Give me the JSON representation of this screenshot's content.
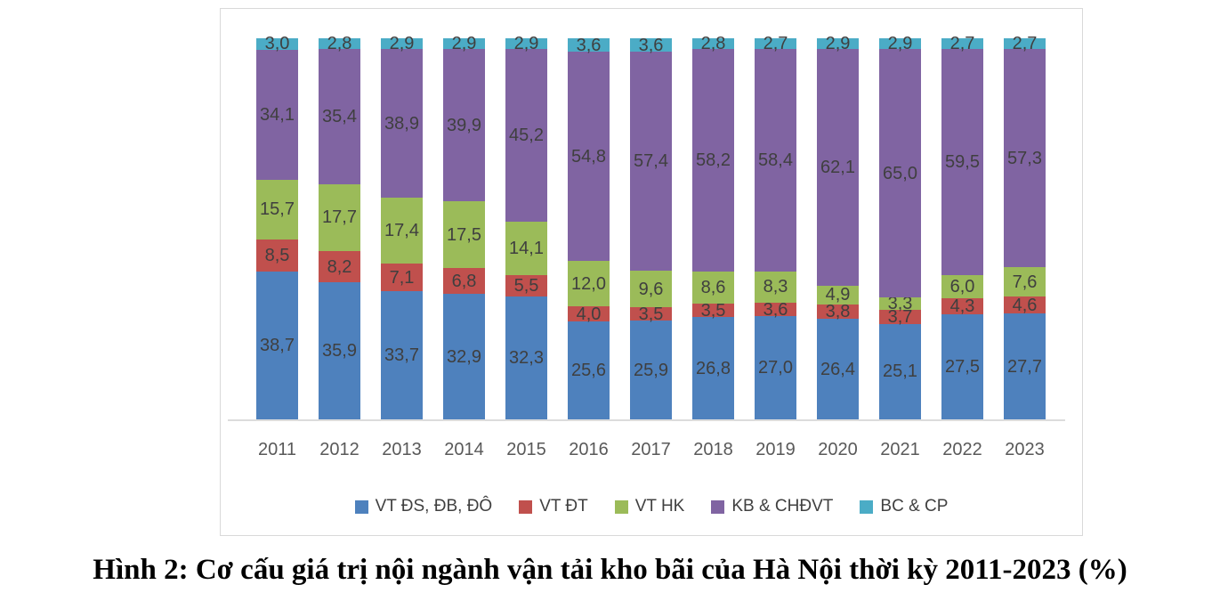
{
  "caption": "Hình 2: Cơ cấu giá trị nội ngành vận tải kho bãi của Hà Nội thời kỳ 2011-2023 (%)",
  "colors": {
    "axis_line": "#dcdcdc",
    "frame_border": "#d9d9d9",
    "data_label": "#3f3f3f",
    "axis_label": "#595959",
    "legend_label": "#404040"
  },
  "chart_data": {
    "type": "bar",
    "stacked": true,
    "title": "",
    "xlabel": "",
    "ylabel": "",
    "ylim": [
      0,
      100
    ],
    "grid": false,
    "legend_position": "bottom",
    "decimal_separator": ",",
    "data_labels": true,
    "categories": [
      "2011",
      "2012",
      "2013",
      "2014",
      "2015",
      "2016",
      "2017",
      "2018",
      "2019",
      "2020",
      "2021",
      "2022",
      "2023"
    ],
    "series": [
      {
        "name": "VT ĐS, ĐB, ĐÔ",
        "color": "#4e81bd",
        "values": [
          38.7,
          35.9,
          33.7,
          32.9,
          32.3,
          25.6,
          25.9,
          26.8,
          27.0,
          26.4,
          25.1,
          27.5,
          27.7
        ]
      },
      {
        "name": "VT ĐT",
        "color": "#c0504d",
        "values": [
          8.5,
          8.2,
          7.1,
          6.8,
          5.5,
          4.0,
          3.5,
          3.5,
          3.6,
          3.8,
          3.7,
          4.3,
          4.6
        ]
      },
      {
        "name": "VT HK",
        "color": "#9bbb59",
        "values": [
          15.7,
          17.7,
          17.4,
          17.5,
          14.1,
          12.0,
          9.6,
          8.6,
          8.3,
          4.9,
          3.3,
          6.0,
          7.6
        ]
      },
      {
        "name": "KB & CHĐVT",
        "color": "#8064a2",
        "values": [
          34.1,
          35.4,
          38.9,
          39.9,
          45.2,
          54.8,
          57.4,
          58.2,
          58.4,
          62.1,
          65.0,
          59.5,
          57.3
        ]
      },
      {
        "name": "BC & CP",
        "color": "#4bacc6",
        "values": [
          3.0,
          2.8,
          2.9,
          2.9,
          2.9,
          3.6,
          3.6,
          2.8,
          2.7,
          2.9,
          2.9,
          2.7,
          2.7
        ]
      }
    ]
  }
}
